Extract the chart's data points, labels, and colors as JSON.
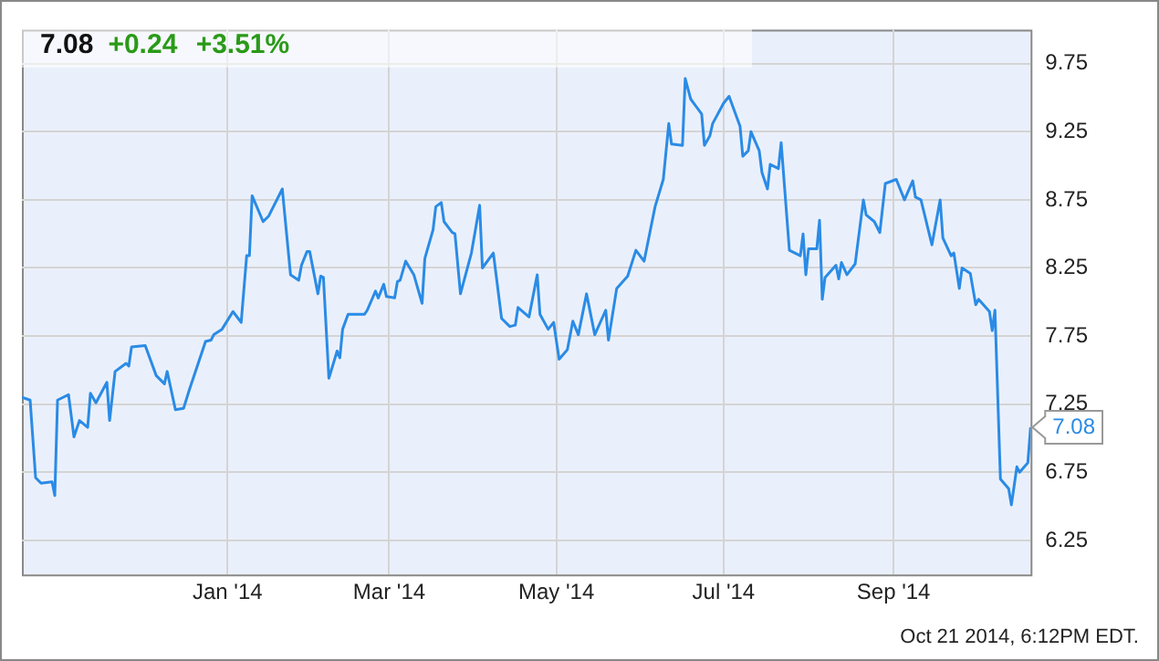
{
  "chart_data": {
    "type": "line",
    "title": "7.08",
    "subtitle": "+0.24 +3.51%",
    "xlim": [
      "2013-10-18",
      "2014-10-21"
    ],
    "xticks": [
      {
        "value": "2014-01-01",
        "label": "Jan '14"
      },
      {
        "value": "2014-03-01",
        "label": "Mar '14"
      },
      {
        "value": "2014-05-01",
        "label": "May '14"
      },
      {
        "value": "2014-07-01",
        "label": "Jul '14"
      },
      {
        "value": "2014-09-01",
        "label": "Sep '14"
      }
    ],
    "ylim": [
      6.0,
      10.0
    ],
    "yticks": [
      6.25,
      6.75,
      7.25,
      7.75,
      8.25,
      8.75,
      9.25,
      9.75
    ],
    "grid": true,
    "marker": "none",
    "line_style": "solid",
    "annotations": [
      {
        "text": "7.08",
        "x": "2014-10-21",
        "y": 7.08
      },
      "Oct 21 2014, 6:12PM EDT."
    ],
    "series": [
      {
        "color": "#2a8be6",
        "x": [
          "2013-10-18",
          "2013-10-21",
          "2013-10-23",
          "2013-10-25",
          "2013-10-29",
          "2013-10-30",
          "2013-10-31",
          "2013-11-04",
          "2013-11-06",
          "2013-11-08",
          "2013-11-11",
          "2013-11-12",
          "2013-11-14",
          "2013-11-18",
          "2013-11-19",
          "2013-11-21",
          "2013-11-25",
          "2013-11-26",
          "2013-11-27",
          "2013-12-02",
          "2013-12-06",
          "2013-12-09",
          "2013-12-10",
          "2013-12-13",
          "2013-12-16",
          "2013-12-18",
          "2013-12-24",
          "2013-12-26",
          "2013-12-27",
          "2013-12-30",
          "2014-01-03",
          "2014-01-06",
          "2014-01-08",
          "2014-01-09",
          "2014-01-10",
          "2014-01-14",
          "2014-01-16",
          "2014-01-21",
          "2014-01-24",
          "2014-01-27",
          "2014-01-28",
          "2014-01-30",
          "2014-01-31",
          "2014-02-03",
          "2014-02-04",
          "2014-02-05",
          "2014-02-07",
          "2014-02-10",
          "2014-02-11",
          "2014-02-12",
          "2014-02-14",
          "2014-02-20",
          "2014-02-21",
          "2014-02-24",
          "2014-02-25",
          "2014-02-27",
          "2014-02-28",
          "2014-03-03",
          "2014-03-04",
          "2014-03-05",
          "2014-03-07",
          "2014-03-10",
          "2014-03-12",
          "2014-03-13",
          "2014-03-14",
          "2014-03-17",
          "2014-03-18",
          "2014-03-20",
          "2014-03-21",
          "2014-03-24",
          "2014-03-25",
          "2014-03-27",
          "2014-03-31",
          "2014-04-03",
          "2014-04-04",
          "2014-04-08",
          "2014-04-11",
          "2014-04-14",
          "2014-04-16",
          "2014-04-17",
          "2014-04-21",
          "2014-04-24",
          "2014-04-25",
          "2014-04-28",
          "2014-04-30",
          "2014-05-02",
          "2014-05-05",
          "2014-05-07",
          "2014-05-09",
          "2014-05-12",
          "2014-05-15",
          "2014-05-19",
          "2014-05-20",
          "2014-05-23",
          "2014-05-27",
          "2014-05-30",
          "2014-06-02",
          "2014-06-06",
          "2014-06-09",
          "2014-06-11",
          "2014-06-12",
          "2014-06-16",
          "2014-06-17",
          "2014-06-19",
          "2014-06-23",
          "2014-06-24",
          "2014-06-26",
          "2014-06-27",
          "2014-07-01",
          "2014-07-03",
          "2014-07-07",
          "2014-07-08",
          "2014-07-10",
          "2014-07-11",
          "2014-07-14",
          "2014-07-15",
          "2014-07-17",
          "2014-07-18",
          "2014-07-21",
          "2014-07-22",
          "2014-07-25",
          "2014-07-29",
          "2014-07-30",
          "2014-07-31",
          "2014-08-01",
          "2014-08-04",
          "2014-08-05",
          "2014-08-06",
          "2014-08-07",
          "2014-08-11",
          "2014-08-12",
          "2014-08-13",
          "2014-08-15",
          "2014-08-18",
          "2014-08-21",
          "2014-08-22",
          "2014-08-25",
          "2014-08-27",
          "2014-08-29",
          "2014-09-02",
          "2014-09-05",
          "2014-09-08",
          "2014-09-09",
          "2014-09-11",
          "2014-09-15",
          "2014-09-18",
          "2014-09-19",
          "2014-09-22",
          "2014-09-23",
          "2014-09-25",
          "2014-09-26",
          "2014-09-29",
          "2014-10-01",
          "2014-10-02",
          "2014-10-06",
          "2014-10-07",
          "2014-10-08",
          "2014-10-10",
          "2014-10-13",
          "2014-10-14",
          "2014-10-16",
          "2014-10-17",
          "2014-10-20",
          "2014-10-21"
        ],
        "values": [
          7.3,
          7.28,
          6.71,
          6.67,
          6.68,
          6.58,
          7.28,
          7.32,
          7.01,
          7.13,
          7.08,
          7.33,
          7.26,
          7.41,
          7.13,
          7.49,
          7.55,
          7.53,
          7.67,
          7.68,
          7.46,
          7.4,
          7.49,
          7.21,
          7.22,
          7.35,
          7.71,
          7.72,
          7.76,
          7.8,
          7.93,
          7.85,
          8.34,
          8.34,
          8.78,
          8.59,
          8.63,
          8.83,
          8.2,
          8.16,
          8.27,
          8.37,
          8.37,
          8.06,
          8.19,
          8.18,
          7.44,
          7.64,
          7.59,
          7.8,
          7.91,
          7.91,
          7.94,
          8.08,
          8.03,
          8.13,
          8.04,
          8.03,
          8.15,
          8.16,
          8.3,
          8.2,
          8.06,
          7.99,
          8.32,
          8.53,
          8.7,
          8.73,
          8.59,
          8.51,
          8.5,
          8.06,
          8.36,
          8.71,
          8.25,
          8.36,
          7.88,
          7.82,
          7.83,
          7.96,
          7.89,
          8.2,
          7.91,
          7.8,
          7.85,
          7.58,
          7.65,
          7.86,
          7.76,
          8.06,
          7.76,
          7.94,
          7.72,
          8.1,
          8.19,
          8.38,
          8.3,
          8.7,
          8.9,
          9.31,
          9.16,
          9.15,
          9.64,
          9.49,
          9.38,
          9.15,
          9.22,
          9.31,
          9.46,
          9.51,
          9.29,
          9.07,
          9.11,
          9.25,
          9.11,
          8.95,
          8.83,
          9.01,
          8.98,
          9.17,
          8.38,
          8.34,
          8.5,
          8.2,
          8.39,
          8.39,
          8.6,
          8.02,
          8.18,
          8.27,
          8.17,
          8.29,
          8.2,
          8.28,
          8.75,
          8.64,
          8.59,
          8.51,
          8.87,
          8.9,
          8.75,
          8.89,
          8.77,
          8.75,
          8.42,
          8.75,
          8.47,
          8.34,
          8.36,
          8.1,
          8.25,
          8.21,
          7.98,
          8.02,
          7.93,
          7.79,
          7.94,
          6.7,
          6.63,
          6.51,
          6.79,
          6.75,
          6.82,
          7.08
        ]
      }
    ]
  }
}
